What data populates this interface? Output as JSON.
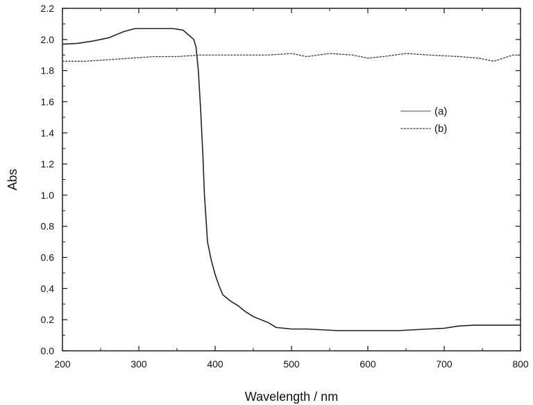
{
  "chart_data": {
    "type": "line",
    "title": "",
    "xlabel": "Wavelength / nm",
    "ylabel": "Abs",
    "xlim": [
      200,
      800
    ],
    "ylim": [
      0.0,
      2.2
    ],
    "x_ticks": [
      200,
      300,
      400,
      500,
      600,
      700,
      800
    ],
    "y_ticks": [
      0.0,
      0.2,
      0.4,
      0.6,
      0.8,
      1.0,
      1.2,
      1.4,
      1.6,
      1.8,
      2.0,
      2.2
    ],
    "x_tick_labels": [
      "200",
      "300",
      "400",
      "500",
      "600",
      "700",
      "800"
    ],
    "y_tick_labels": [
      "0.0",
      "0.2",
      "0.4",
      "0.6",
      "0.8",
      "1.0",
      "1.2",
      "1.4",
      "1.6",
      "1.8",
      "2.0",
      "2.2"
    ],
    "grid": false,
    "legend_position": "right-center",
    "series": [
      {
        "name": "(a)",
        "style": "solid",
        "color": "#222222",
        "legend_color": "#a8a8a8",
        "points": [
          [
            200,
            1.97
          ],
          [
            220,
            1.975
          ],
          [
            240,
            1.99
          ],
          [
            260,
            2.01
          ],
          [
            280,
            2.05
          ],
          [
            295,
            2.07
          ],
          [
            320,
            2.07
          ],
          [
            345,
            2.07
          ],
          [
            358,
            2.06
          ],
          [
            365,
            2.03
          ],
          [
            372,
            2.0
          ],
          [
            375,
            1.95
          ],
          [
            378,
            1.8
          ],
          [
            381,
            1.55
          ],
          [
            384,
            1.25
          ],
          [
            386,
            1.0
          ],
          [
            388,
            0.85
          ],
          [
            390,
            0.7
          ],
          [
            395,
            0.58
          ],
          [
            400,
            0.49
          ],
          [
            405,
            0.42
          ],
          [
            410,
            0.36
          ],
          [
            420,
            0.32
          ],
          [
            430,
            0.29
          ],
          [
            440,
            0.25
          ],
          [
            450,
            0.22
          ],
          [
            460,
            0.2
          ],
          [
            470,
            0.18
          ],
          [
            480,
            0.15
          ],
          [
            490,
            0.145
          ],
          [
            500,
            0.14
          ],
          [
            520,
            0.14
          ],
          [
            540,
            0.135
          ],
          [
            560,
            0.13
          ],
          [
            600,
            0.13
          ],
          [
            640,
            0.13
          ],
          [
            680,
            0.14
          ],
          [
            700,
            0.145
          ],
          [
            720,
            0.16
          ],
          [
            740,
            0.165
          ],
          [
            760,
            0.165
          ],
          [
            800,
            0.165
          ]
        ]
      },
      {
        "name": "(b)",
        "style": "dotted",
        "color": "#333333",
        "legend_color": "#333333",
        "points": [
          [
            200,
            1.86
          ],
          [
            230,
            1.86
          ],
          [
            260,
            1.87
          ],
          [
            290,
            1.88
          ],
          [
            320,
            1.89
          ],
          [
            350,
            1.89
          ],
          [
            380,
            1.9
          ],
          [
            410,
            1.9
          ],
          [
            440,
            1.9
          ],
          [
            470,
            1.9
          ],
          [
            500,
            1.91
          ],
          [
            520,
            1.89
          ],
          [
            550,
            1.91
          ],
          [
            580,
            1.9
          ],
          [
            600,
            1.88
          ],
          [
            620,
            1.89
          ],
          [
            650,
            1.91
          ],
          [
            680,
            1.9
          ],
          [
            720,
            1.89
          ],
          [
            745,
            1.88
          ],
          [
            765,
            1.86
          ],
          [
            790,
            1.9
          ],
          [
            800,
            1.9
          ]
        ]
      }
    ]
  }
}
